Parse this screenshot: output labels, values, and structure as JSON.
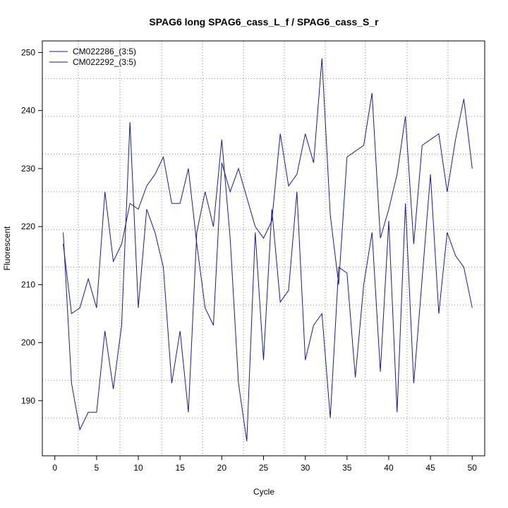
{
  "chart_data": {
    "type": "line",
    "title": "SPAG6 long SPAG6_cass_L_f / SPAG6_cass_S_r",
    "xlabel": "Cycle",
    "ylabel": "Fluorescent",
    "xlim": [
      -1.5,
      51.5
    ],
    "ylim": [
      180.5,
      252
    ],
    "x_ticks": [
      0,
      5,
      10,
      15,
      20,
      25,
      30,
      35,
      40,
      45,
      50
    ],
    "y_ticks": [
      190,
      200,
      210,
      220,
      230,
      240,
      250
    ],
    "x_grid": [
      2.8,
      7.8,
      12.8,
      17.7,
      22.6,
      27.5,
      32.4,
      37.2,
      42.2,
      47.1
    ],
    "y_grid": [
      187,
      193.5,
      206.5,
      213,
      219.5,
      226,
      232.5,
      239,
      245.5
    ],
    "grid": true,
    "legend_position": "top-left",
    "line_color": "#1a1a8c",
    "series": [
      {
        "name": "CM022286_(3:5)",
        "x": [
          1,
          2,
          3,
          4,
          5,
          6,
          7,
          8,
          9,
          10,
          11,
          12,
          13,
          14,
          15,
          16,
          17,
          18,
          19,
          20,
          21,
          22,
          23,
          24,
          25,
          26,
          27,
          28,
          29,
          30,
          31,
          32,
          33,
          34,
          35,
          36,
          37,
          38,
          39,
          40,
          41,
          42,
          43,
          44,
          45,
          46,
          47,
          48,
          49,
          50
        ],
        "values": [
          219,
          193,
          185,
          188,
          188,
          202,
          192,
          203,
          238,
          206,
          223,
          219,
          213,
          193,
          202,
          188,
          219,
          226,
          220,
          235,
          218,
          193,
          183,
          219,
          197,
          223,
          207,
          209,
          226,
          197,
          203,
          205,
          187,
          213,
          212,
          194,
          210,
          219,
          195,
          221,
          188,
          224,
          193,
          211,
          229,
          205,
          219,
          215,
          213,
          206
        ]
      },
      {
        "name": "CM022292_(3:5)",
        "x": [
          1,
          2,
          3,
          4,
          5,
          6,
          7,
          8,
          9,
          10,
          11,
          12,
          13,
          14,
          15,
          16,
          17,
          18,
          19,
          20,
          21,
          22,
          23,
          24,
          25,
          26,
          27,
          28,
          29,
          30,
          31,
          32,
          33,
          34,
          35,
          36,
          37,
          38,
          39,
          40,
          41,
          42,
          43,
          44,
          45,
          46,
          47,
          48,
          49,
          50
        ],
        "values": [
          217,
          205,
          206,
          211,
          206,
          226,
          214,
          217,
          224,
          223,
          227,
          229,
          232,
          224,
          224,
          230,
          217,
          206,
          203,
          231,
          226,
          230,
          225,
          220,
          218,
          221,
          236,
          227,
          229,
          236,
          231,
          249,
          222,
          210,
          232,
          233,
          234,
          243,
          218,
          223,
          229,
          239,
          217,
          234,
          235,
          236,
          226,
          235,
          242,
          230
        ]
      }
    ]
  }
}
